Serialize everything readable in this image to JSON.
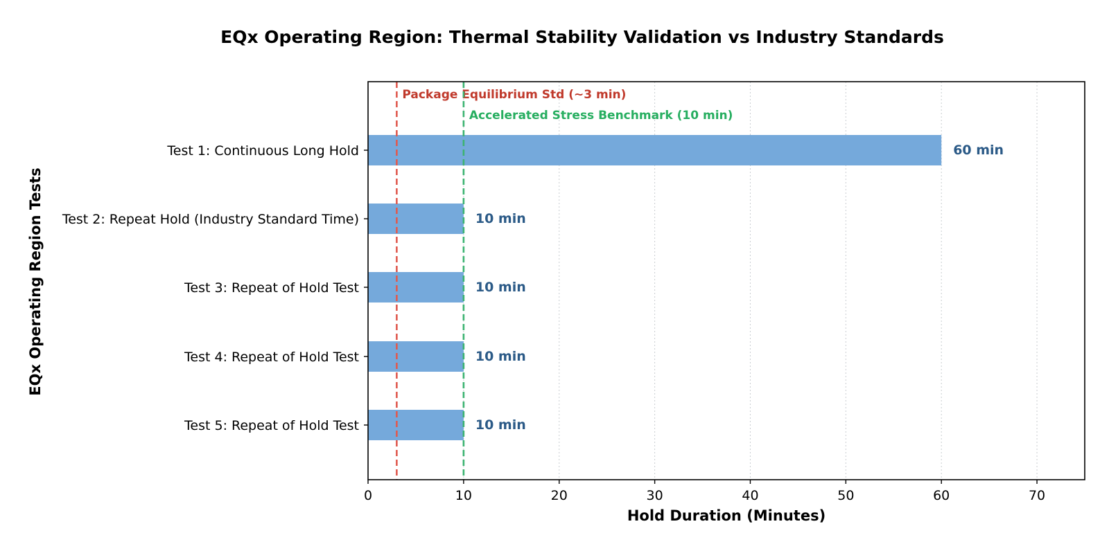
{
  "chart_data": {
    "type": "bar",
    "orientation": "horizontal",
    "title": "EQx Operating Region: Thermal Stability Validation vs Industry Standards",
    "xlabel": "Hold Duration (Minutes)",
    "ylabel": "EQx Operating Region Tests",
    "xlim": [
      0,
      75
    ],
    "xticks": [
      0,
      10,
      20,
      30,
      40,
      50,
      60,
      70
    ],
    "grid": "x-dotted",
    "categories": [
      "Test 1: Continuous Long Hold",
      "Test 2: Repeat Hold (Industry Standard Time)",
      "Test 3: Repeat of Hold Test",
      "Test 4: Repeat of Hold Test",
      "Test 5: Repeat of Hold Test"
    ],
    "values": [
      60,
      10,
      10,
      10,
      10
    ],
    "value_labels": [
      "60 min",
      "10 min",
      "10 min",
      "10 min",
      "10 min"
    ],
    "reference_lines": [
      {
        "value": 3,
        "label": "Package Equilibrium Std (~3 min)",
        "color": "#e05a4f",
        "label_color": "#c0392b",
        "style": "dashed"
      },
      {
        "value": 10,
        "label": "Accelerated Stress Benchmark (10 min)",
        "color": "#3cb371",
        "label_color": "#27ae60",
        "style": "dashed"
      }
    ],
    "colors": {
      "bar": "#75a9db",
      "value_label": "#2b5a87",
      "grid": "#c8ccd0",
      "axis": "#000000"
    }
  }
}
